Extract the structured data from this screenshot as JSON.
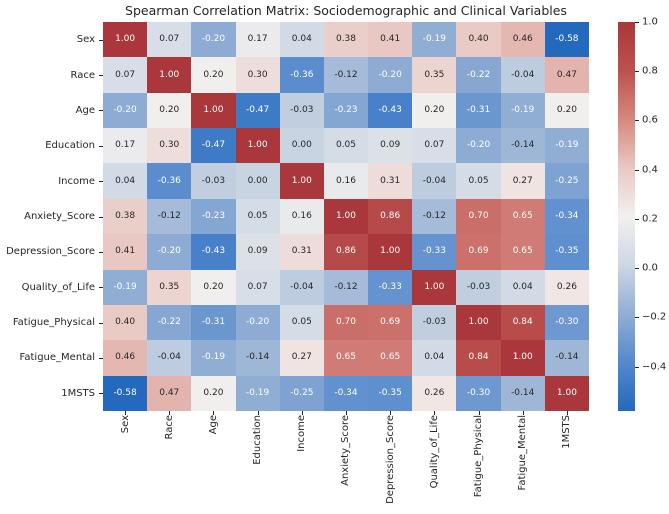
{
  "title": "Spearman Correlation Matrix: Sociodemographic and Clinical Variables",
  "chart_data": {
    "type": "heatmap",
    "title": "Spearman Correlation Matrix: Sociodemographic and Clinical Variables",
    "categories": [
      "Sex",
      "Race",
      "Age",
      "Education",
      "Income",
      "Anxiety_Score",
      "Depression_Score",
      "Quality_of_Life",
      "Fatigue_Physical",
      "Fatigue_Mental",
      "1MSTS"
    ],
    "matrix": [
      [
        1.0,
        0.07,
        -0.2,
        0.17,
        0.04,
        0.38,
        0.41,
        -0.19,
        0.4,
        0.46,
        -0.58
      ],
      [
        0.07,
        1.0,
        0.2,
        0.3,
        -0.36,
        -0.12,
        -0.2,
        0.35,
        -0.22,
        -0.04,
        0.47
      ],
      [
        -0.2,
        0.2,
        1.0,
        -0.47,
        -0.03,
        -0.23,
        -0.43,
        0.2,
        -0.31,
        -0.19,
        0.2
      ],
      [
        0.17,
        0.3,
        -0.47,
        1.0,
        0.0,
        0.05,
        0.09,
        0.07,
        -0.2,
        -0.14,
        -0.19
      ],
      [
        0.04,
        -0.36,
        -0.03,
        0.0,
        1.0,
        0.16,
        0.31,
        -0.04,
        0.05,
        0.27,
        -0.25
      ],
      [
        0.38,
        -0.12,
        -0.23,
        0.05,
        0.16,
        1.0,
        0.86,
        -0.12,
        0.7,
        0.65,
        -0.34
      ],
      [
        0.41,
        -0.2,
        -0.43,
        0.09,
        0.31,
        0.86,
        1.0,
        -0.33,
        0.69,
        0.65,
        -0.35
      ],
      [
        -0.19,
        0.35,
        0.2,
        0.07,
        -0.04,
        -0.12,
        -0.33,
        1.0,
        -0.03,
        0.04,
        0.26
      ],
      [
        0.4,
        -0.22,
        -0.31,
        -0.2,
        0.05,
        0.7,
        0.69,
        -0.03,
        1.0,
        0.84,
        -0.3
      ],
      [
        0.46,
        -0.04,
        -0.19,
        -0.14,
        0.27,
        0.65,
        0.65,
        0.04,
        0.84,
        1.0,
        -0.14
      ],
      [
        -0.58,
        0.47,
        0.2,
        -0.19,
        -0.25,
        -0.34,
        -0.35,
        0.26,
        -0.3,
        -0.14,
        1.0
      ]
    ],
    "value_decimals": 2,
    "colorbar": {
      "vmin": -0.58,
      "vmax": 1.0,
      "tick_values": [
        1.0,
        0.8,
        0.6,
        0.4,
        0.2,
        0.0,
        -0.2,
        -0.4
      ],
      "tick_labels": [
        "1.0",
        "0.8",
        "0.6",
        "0.4",
        "0.2",
        "0.0",
        "−0.2",
        "−0.4"
      ],
      "position": "right"
    },
    "colormap": {
      "name": "diverging-blue-white-red-vlag",
      "stops": [
        {
          "t": 0.0,
          "color": "#2369bd"
        },
        {
          "t": 0.125,
          "color": "#5489cd"
        },
        {
          "t": 0.25,
          "color": "#92aed3"
        },
        {
          "t": 0.375,
          "color": "#cdd7e4"
        },
        {
          "t": 0.5,
          "color": "#f2f0ef"
        },
        {
          "t": 0.625,
          "color": "#e9c8c3"
        },
        {
          "t": 0.75,
          "color": "#d68880"
        },
        {
          "t": 0.875,
          "color": "#bc514f"
        },
        {
          "t": 1.0,
          "color": "#a9373b"
        }
      ]
    },
    "annotation_colors": {
      "dark_text": "#262626",
      "light_text": "#ffffff"
    },
    "grid": false,
    "legend_position": "right colorbar"
  }
}
